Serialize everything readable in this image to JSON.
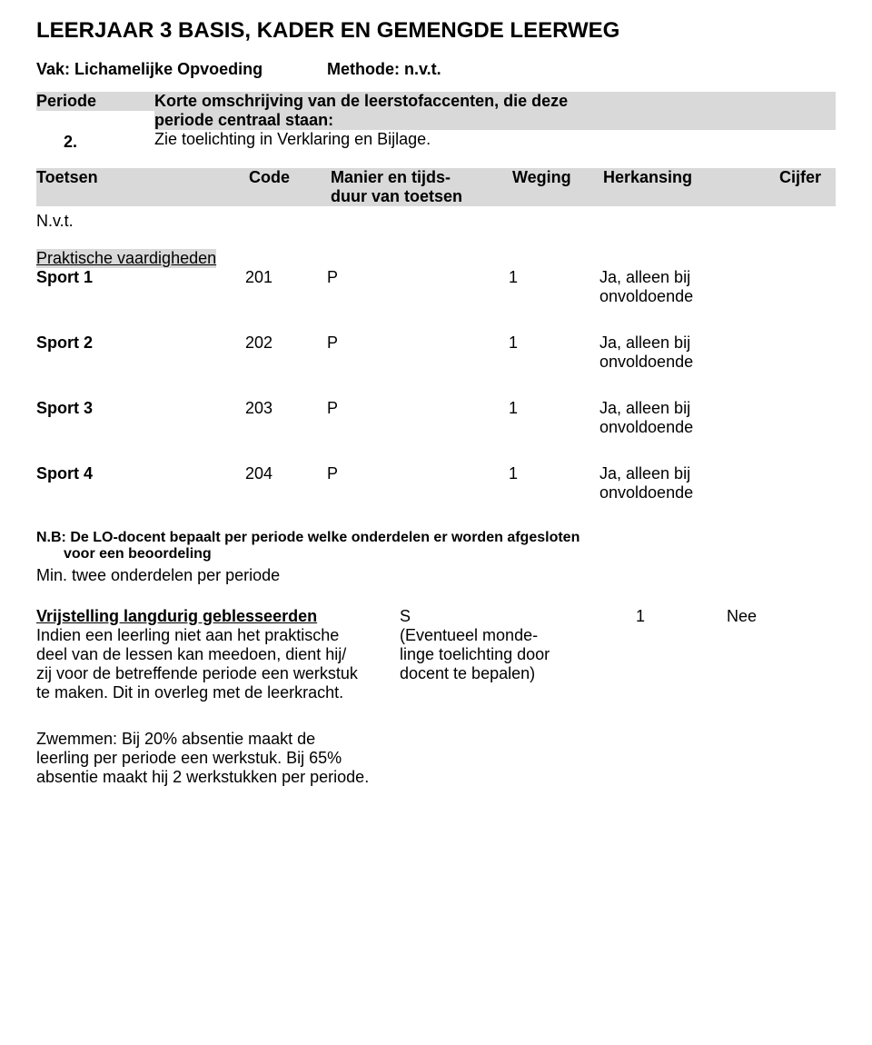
{
  "title": "LEERJAAR 3 BASIS, KADER EN GEMENGDE LEERWEG",
  "subject": {
    "label": "Vak: Lichamelijke Opvoeding",
    "method": "Methode: n.v.t."
  },
  "periode": {
    "label": "Periode",
    "number": "2.",
    "desc": {
      "line1": "Korte omschrijving van de leerstofaccenten, die deze",
      "line2": "periode centraal staan:",
      "line3": "Zie toelichting in Verklaring en Bijlage."
    }
  },
  "headers": {
    "toetsen": "Toetsen",
    "code": "Code",
    "manier1": "Manier en tijds-",
    "manier2": "duur van toetsen",
    "weging": "Weging",
    "herkansing": "Herkansing",
    "cijfer": "Cijfer"
  },
  "nvt": "N.v.t.",
  "pv_heading": "Praktische vaardigheden",
  "sports": [
    {
      "name": "Sport 1",
      "code": "201",
      "manier": "P",
      "weging": "1",
      "herk1": "Ja, alleen bij",
      "herk2": "onvoldoende"
    },
    {
      "name": "Sport 2",
      "code": "202",
      "manier": "P",
      "weging": "1",
      "herk1": "Ja, alleen bij",
      "herk2": "onvoldoende"
    },
    {
      "name": "Sport 3",
      "code": "203",
      "manier": "P",
      "weging": "1",
      "herk1": "Ja, alleen bij",
      "herk2": "onvoldoende"
    },
    {
      "name": "Sport 4",
      "code": "204",
      "manier": "P",
      "weging": "1",
      "herk1": "Ja, alleen bij",
      "herk2": "onvoldoende"
    }
  ],
  "nb": {
    "line1": "N.B: De LO-docent bepaalt per periode welke onderdelen er worden afgesloten",
    "line2": "voor een beoordeling"
  },
  "min_line": "Min. twee onderdelen per periode",
  "vrij": {
    "label": "Vrijstelling langdurig geblesseerden",
    "mid": "S",
    "weg": "1",
    "herk": "Nee",
    "left": [
      "Indien een leerling niet aan het praktische",
      "deel van de lessen kan meedoen, dient hij/",
      "zij voor de betreffende periode een werkstuk",
      "te maken. Dit in overleg met de leerkracht."
    ],
    "right": [
      "(Eventueel monde-",
      "linge toelichting door",
      "docent te bepalen)"
    ]
  },
  "zwem": [
    "Zwemmen: Bij 20% absentie maakt de",
    "leerling per periode een werkstuk. Bij 65%",
    "absentie maakt hij 2 werkstukken per periode."
  ]
}
